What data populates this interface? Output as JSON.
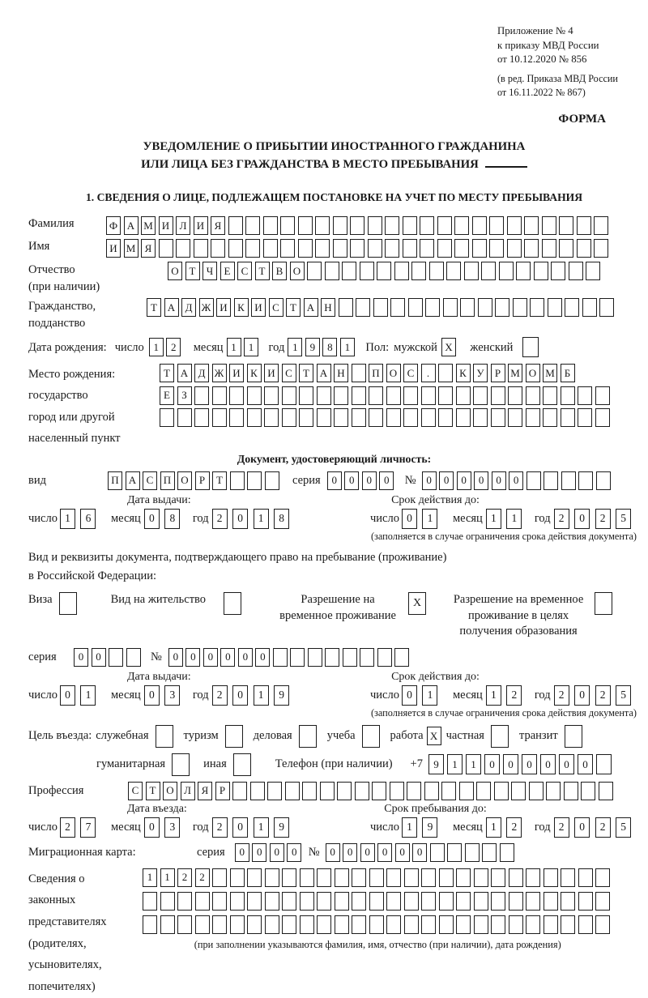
{
  "colors": {
    "ink": "#1a1a1a",
    "page": "#ffffff"
  },
  "header": {
    "annex_lines": [
      "Приложение № 4",
      "к приказу МВД России",
      "от 10.12.2020 № 856"
    ],
    "revision_lines": [
      "(в ред. Приказа МВД России",
      "от 16.11.2022 № 867)"
    ],
    "form_label": "ФОРМА"
  },
  "title": {
    "line1": "УВЕДОМЛЕНИЕ О ПРИБЫТИИ ИНОСТРАННОГО ГРАЖДАНИНА",
    "line2": "ИЛИ ЛИЦА БЕЗ ГРАЖДАНСТВА В МЕСТО ПРЕБЫВАНИЯ"
  },
  "section1_heading": "1. СВЕДЕНИЯ О ЛИЦЕ, ПОДЛЕЖАЩЕМ ПОСТАНОВКЕ НА УЧЕТ ПО МЕСТУ ПРЕБЫВАНИЯ",
  "date_labels": {
    "day": "число",
    "month": "месяц",
    "year": "год"
  },
  "person": {
    "surname": {
      "label": "Фамилия",
      "boxes": {
        "value": "ФАМИЛИЯ",
        "cells": 29
      }
    },
    "given_name": {
      "label": "Имя",
      "boxes": {
        "value": "ИМЯ",
        "cells": 29
      }
    },
    "patronymic": {
      "label": "Отчество",
      "label_note": "(при наличии)",
      "boxes": {
        "value": "ОТЧЕСТВО",
        "cells": 25
      }
    },
    "citizenship": {
      "label": "Гражданство,",
      "label2": "подданство",
      "boxes": {
        "value": "ТАДЖИКИСТАН",
        "cells": 27
      }
    },
    "birth_date": {
      "label": "Дата рождения:",
      "day": "12",
      "month": "11",
      "year": "1981"
    },
    "sex": {
      "label": "Пол:",
      "male_label": "мужской",
      "male_checked": true,
      "female_label": "женский",
      "female_checked": false
    },
    "birth_place": {
      "label": "Место рождения:",
      "sub1": "государство",
      "sub2": "город или другой",
      "sub3": "населенный пункт",
      "row1": {
        "value": "ТАДЖИКИСТАН ПОС. КУРМОМБ",
        "cells": 24
      },
      "row2": {
        "value": "ЕЗ",
        "cells": 26
      },
      "row3": {
        "value": "",
        "cells": 26
      }
    }
  },
  "identity_doc": {
    "heading": "Документ, удостоверяющий личность:",
    "kind_label": "вид",
    "kind_boxes": {
      "value": "ПАСПОРТ",
      "cells": 10
    },
    "series_label": "серия",
    "series_boxes": {
      "value": "0000",
      "cells": 4
    },
    "number_label": "№",
    "number_boxes": {
      "value": "000000",
      "cells": 11
    },
    "issue_heading": "Дата выдачи:",
    "issue": {
      "day": "16",
      "month": "08",
      "year": "2018"
    },
    "expiry_heading": "Срок действия до:",
    "expiry": {
      "day": "01",
      "month": "11",
      "year": "2025"
    },
    "note": "(заполняется в случае ограничения срока действия документа)"
  },
  "residence_doc": {
    "intro1": "Вид и реквизиты документа, подтверждающего право на пребывание (проживание)",
    "intro2": "в Российской Федерации:",
    "options": [
      {
        "label": "Виза",
        "checked": false
      },
      {
        "label": "Вид на жительство",
        "checked": false
      },
      {
        "label": "Разрешение на временное проживание",
        "checked": true
      },
      {
        "label": "Разрешение на временное проживание в целях получения образования",
        "checked": false
      }
    ],
    "series_label": "серия",
    "series_boxes": {
      "value": "00",
      "cells": 4
    },
    "number_label": "№",
    "number_boxes": {
      "value": "000000",
      "cells": 14
    },
    "issue_heading": "Дата выдачи:",
    "issue": {
      "day": "01",
      "month": "03",
      "year": "2019"
    },
    "expiry_heading": "Срок действия до:",
    "expiry": {
      "day": "01",
      "month": "12",
      "year": "2025"
    },
    "note": "(заполняется в случае ограничения срока действия документа)"
  },
  "entry_purpose": {
    "label": "Цель въезда:",
    "row1": [
      {
        "label": "служебная",
        "checked": false
      },
      {
        "label": "туризм",
        "checked": false
      },
      {
        "label": "деловая",
        "checked": false
      },
      {
        "label": "учеба",
        "checked": false
      },
      {
        "label": "работа",
        "checked": true
      },
      {
        "label": "частная",
        "checked": false
      },
      {
        "label": "транзит",
        "checked": false
      }
    ],
    "row2": [
      {
        "label": "гуманитарная",
        "checked": false
      },
      {
        "label": "иная",
        "checked": false
      }
    ],
    "phone_label": "Телефон (при наличии)",
    "phone_prefix": "+7",
    "phone_boxes": {
      "value": "911000000",
      "cells": 10
    }
  },
  "profession": {
    "label": "Профессия",
    "boxes": {
      "value": "СТОЛЯР",
      "cells": 28
    }
  },
  "entry_dates": {
    "entry_heading": "Дата въезда:",
    "entry": {
      "day": "27",
      "month": "03",
      "year": "2019"
    },
    "stay_heading": "Срок пребывания до:",
    "stay": {
      "day": "19",
      "month": "12",
      "year": "2025"
    }
  },
  "migration_card": {
    "label": "Миграционная карта:",
    "series_label": "серия",
    "series_boxes": {
      "value": "0000",
      "cells": 4
    },
    "number_label": "№",
    "number_boxes": {
      "value": "000000",
      "cells": 11
    }
  },
  "representatives": {
    "label_lines": [
      "Сведения о",
      "законных",
      "представителях",
      "(родителях,",
      "усыновителях,",
      "попечителях)"
    ],
    "row1": {
      "value": "1122",
      "cells": 27
    },
    "row2": {
      "value": "",
      "cells": 27
    },
    "row3": {
      "value": "",
      "cells": 27
    },
    "note": "(при заполнении указываются фамилия, имя, отчество (при наличии), дата рождения)"
  }
}
